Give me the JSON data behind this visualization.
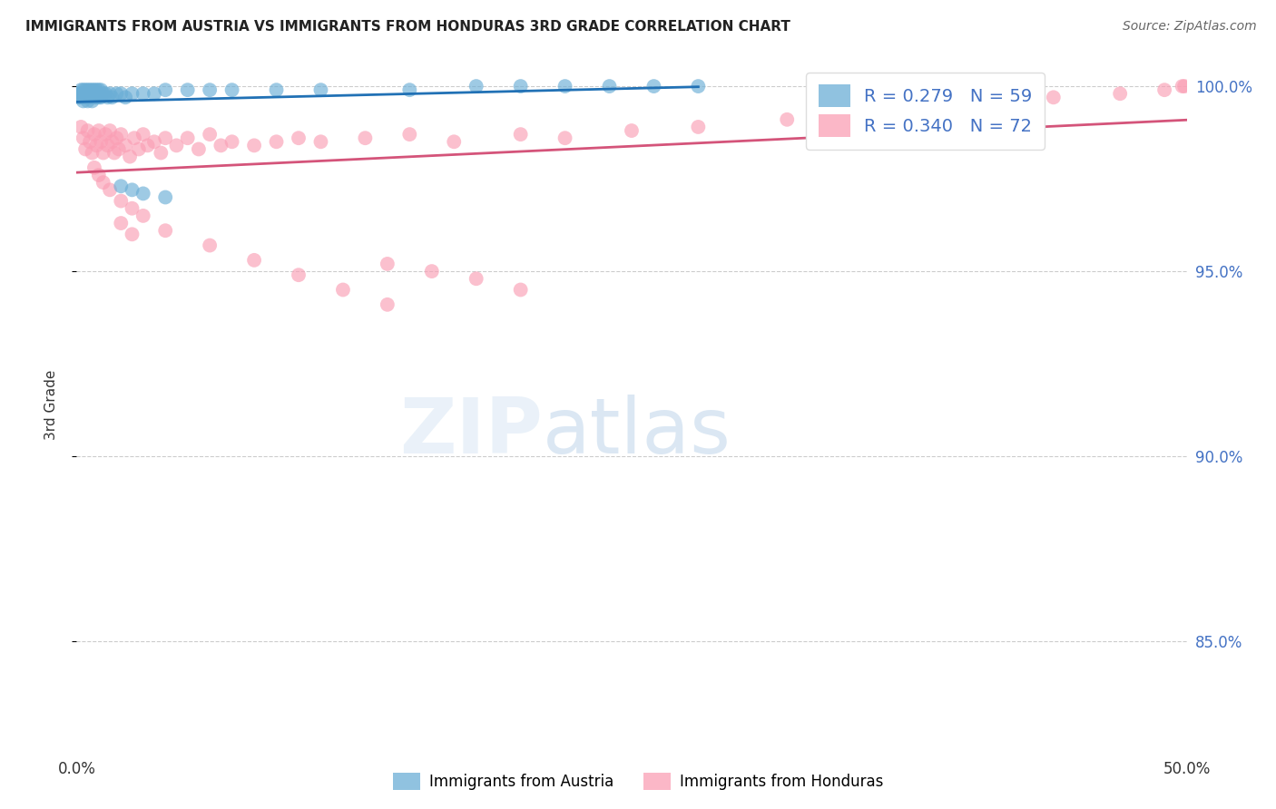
{
  "title": "IMMIGRANTS FROM AUSTRIA VS IMMIGRANTS FROM HONDURAS 3RD GRADE CORRELATION CHART",
  "source": "Source: ZipAtlas.com",
  "ylabel": "3rd Grade",
  "xlim": [
    0.0,
    0.5
  ],
  "ylim": [
    0.82,
    1.008
  ],
  "yticks": [
    0.85,
    0.9,
    0.95,
    1.0
  ],
  "yticklabels": [
    "85.0%",
    "90.0%",
    "95.0%",
    "100.0%"
  ],
  "xtick_positions": [
    0.0,
    0.1,
    0.2,
    0.3,
    0.4,
    0.5
  ],
  "xticklabels": [
    "0.0%",
    "",
    "",
    "",
    "",
    "50.0%"
  ],
  "austria_color": "#6baed6",
  "honduras_color": "#fa9fb5",
  "austria_line_color": "#2171b5",
  "honduras_line_color": "#d4547a",
  "legend_line1": "R = 0.279   N = 59",
  "legend_line2": "R = 0.340   N = 72",
  "legend_label_austria": "Immigrants from Austria",
  "legend_label_honduras": "Immigrants from Honduras",
  "watermark_zip": "ZIP",
  "watermark_atlas": "atlas",
  "background_color": "#ffffff",
  "grid_color": "#cccccc",
  "right_axis_color": "#4472c4",
  "austria_x": [
    0.001,
    0.001,
    0.002,
    0.002,
    0.002,
    0.003,
    0.003,
    0.003,
    0.003,
    0.004,
    0.004,
    0.004,
    0.005,
    0.005,
    0.005,
    0.005,
    0.006,
    0.006,
    0.006,
    0.007,
    0.007,
    0.007,
    0.008,
    0.008,
    0.009,
    0.009,
    0.01,
    0.01,
    0.01,
    0.011,
    0.011,
    0.012,
    0.013,
    0.014,
    0.015,
    0.016,
    0.018,
    0.02,
    0.022,
    0.025,
    0.03,
    0.035,
    0.04,
    0.05,
    0.06,
    0.07,
    0.09,
    0.11,
    0.15,
    0.18,
    0.2,
    0.22,
    0.24,
    0.26,
    0.28,
    0.02,
    0.025,
    0.03,
    0.04
  ],
  "austria_y": [
    0.998,
    0.997,
    0.999,
    0.998,
    0.997,
    0.999,
    0.998,
    0.997,
    0.996,
    0.999,
    0.998,
    0.997,
    0.999,
    0.998,
    0.997,
    0.996,
    0.999,
    0.998,
    0.997,
    0.999,
    0.998,
    0.996,
    0.999,
    0.997,
    0.999,
    0.997,
    0.999,
    0.998,
    0.997,
    0.999,
    0.997,
    0.998,
    0.998,
    0.997,
    0.998,
    0.997,
    0.998,
    0.998,
    0.997,
    0.998,
    0.998,
    0.998,
    0.999,
    0.999,
    0.999,
    0.999,
    0.999,
    0.999,
    0.999,
    1.0,
    1.0,
    1.0,
    1.0,
    1.0,
    1.0,
    0.973,
    0.972,
    0.971,
    0.97
  ],
  "honduras_x": [
    0.002,
    0.003,
    0.004,
    0.005,
    0.006,
    0.007,
    0.008,
    0.009,
    0.01,
    0.011,
    0.012,
    0.013,
    0.014,
    0.015,
    0.016,
    0.017,
    0.018,
    0.019,
    0.02,
    0.022,
    0.024,
    0.026,
    0.028,
    0.03,
    0.032,
    0.035,
    0.038,
    0.04,
    0.045,
    0.05,
    0.055,
    0.06,
    0.065,
    0.07,
    0.08,
    0.09,
    0.1,
    0.11,
    0.13,
    0.15,
    0.17,
    0.2,
    0.22,
    0.25,
    0.28,
    0.32,
    0.36,
    0.4,
    0.44,
    0.47,
    0.49,
    0.498,
    0.499,
    0.008,
    0.01,
    0.012,
    0.015,
    0.02,
    0.025,
    0.03,
    0.04,
    0.06,
    0.08,
    0.1,
    0.12,
    0.14,
    0.02,
    0.025,
    0.18,
    0.2,
    0.16,
    0.14
  ],
  "honduras_y": [
    0.989,
    0.986,
    0.983,
    0.988,
    0.985,
    0.982,
    0.987,
    0.984,
    0.988,
    0.985,
    0.982,
    0.987,
    0.984,
    0.988,
    0.985,
    0.982,
    0.986,
    0.983,
    0.987,
    0.984,
    0.981,
    0.986,
    0.983,
    0.987,
    0.984,
    0.985,
    0.982,
    0.986,
    0.984,
    0.986,
    0.983,
    0.987,
    0.984,
    0.985,
    0.984,
    0.985,
    0.986,
    0.985,
    0.986,
    0.987,
    0.985,
    0.987,
    0.986,
    0.988,
    0.989,
    0.991,
    0.993,
    0.995,
    0.997,
    0.998,
    0.999,
    1.0,
    1.0,
    0.978,
    0.976,
    0.974,
    0.972,
    0.969,
    0.967,
    0.965,
    0.961,
    0.957,
    0.953,
    0.949,
    0.945,
    0.941,
    0.963,
    0.96,
    0.948,
    0.945,
    0.95,
    0.952
  ],
  "austria_trendline": [
    0.0,
    0.28,
    0.9965,
    0.998
  ],
  "honduras_trendline": [
    0.0,
    0.5,
    0.96,
    1.0
  ]
}
